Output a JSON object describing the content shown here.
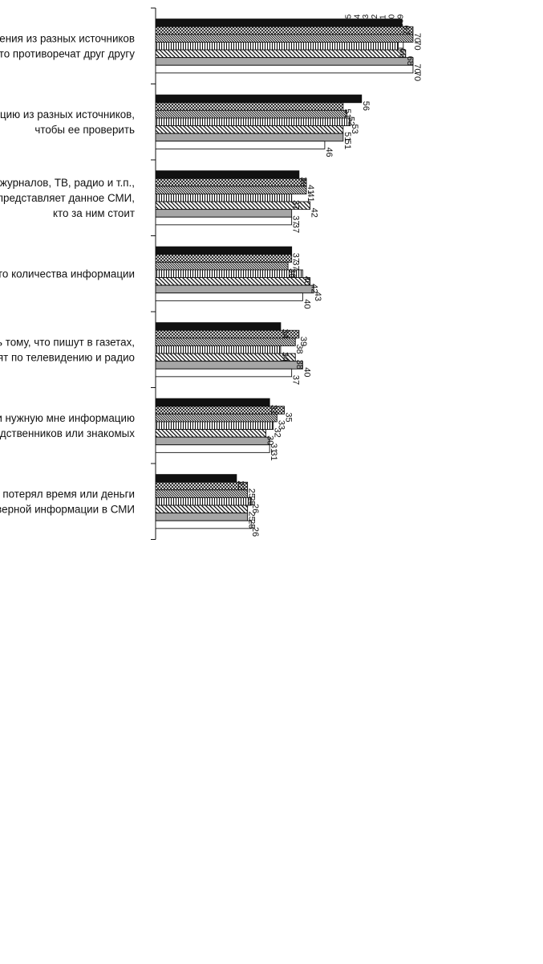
{
  "chart_data": {
    "type": "bar",
    "orientation": "rotated-90",
    "title": "",
    "xlabel": "",
    "ylabel": "",
    "ylim": [
      0,
      72
    ],
    "grid": false,
    "legend_position": "top-right",
    "categories": [
      [
        "Информационные сообщения из разных источников",
        "часто противоречат друг другу"
      ],
      [
        "Я часто сравниваю информацию из разных источников,",
        "чтобы ее проверить"
      ],
      [
        "Чтобы оценить информацию из газет, журналов, ТВ, радио и т.п.,",
        "я стараюсь узнать, чьи интересы представляет данное СМИ,",
        "кто за ним стоит"
      ],
      [
        "Я часто испытываю усталость от большого количества информации"
      ],
      [
        "Я привык верить тому, что пишут в газетах,",
        "говорят по телевидению и радио"
      ],
      [
        "Я часто прошу найти нужную мне информацию",
        "родственников или знакомых"
      ],
      [
        "Были случаи, когда я потерял время или деньги",
        "из-за неверной информации в СМИ"
      ]
    ],
    "series": [
      {
        "name": "2015",
        "pattern": "solid-black",
        "values": [
          67,
          56,
          39,
          37,
          34,
          31,
          22
        ]
      },
      {
        "name": "2014",
        "pattern": "crosshatch",
        "values": [
          70,
          51,
          41,
          37,
          39,
          35,
          25
        ]
      },
      {
        "name": "2013",
        "pattern": "diagonal-dense",
        "values": [
          70,
          52,
          41,
          36,
          38,
          33,
          25
        ]
      },
      {
        "name": "2012",
        "pattern": "horizontal-lines",
        "values": [
          66,
          53,
          37,
          40,
          34,
          32,
          26
        ]
      },
      {
        "name": "2011",
        "pattern": "diagonal-hatch",
        "values": [
          68,
          51,
          42,
          42,
          38,
          30,
          25
        ]
      },
      {
        "name": "2010",
        "pattern": "gray",
        "values": [
          70,
          51,
          37,
          43,
          40,
          31,
          25
        ]
      },
      {
        "name": "2009",
        "pattern": "white",
        "values": [
          70,
          46,
          37,
          40,
          37,
          31,
          26
        ]
      }
    ],
    "colors": {
      "black": "#111111",
      "gray": "#a6a6a6",
      "white": "#ffffff"
    }
  }
}
